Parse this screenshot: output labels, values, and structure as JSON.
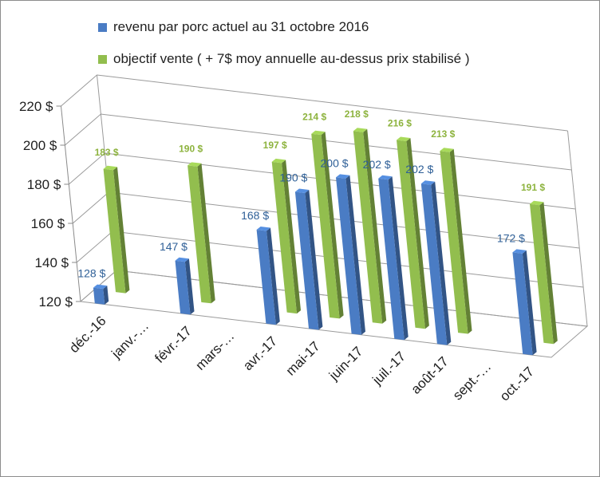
{
  "chart_data": {
    "type": "bar",
    "categories": [
      "déc.-16",
      "janv.-…",
      "févr.-17",
      "mars-…",
      "avr.-17",
      "mai-17",
      "juin-17",
      "juil.-17",
      "août-17",
      "sept.-…",
      "oct.-17"
    ],
    "series": [
      {
        "name": "revenu par porc actuel au 31 octobre 2016",
        "color": "#4a7cc4",
        "values": [
          128,
          null,
          147,
          null,
          168,
          190,
          200,
          202,
          202,
          null,
          172
        ],
        "labels": [
          "128 $",
          "",
          "147 $",
          "",
          "168 $",
          "190 $",
          "200 $",
          "202 $",
          "202 $",
          "",
          "172 $"
        ]
      },
      {
        "name": "objectif vente ( + 7$ moy annuelle au-dessus prix stabilisé )",
        "color": "#92be4e",
        "values": [
          183,
          null,
          190,
          null,
          197,
          214,
          218,
          216,
          213,
          null,
          191
        ],
        "labels": [
          "183 $",
          "",
          "190 $",
          "",
          "197 $",
          "214 $",
          "218 $",
          "216 $",
          "213 $",
          "",
          "191 $"
        ]
      }
    ],
    "ylim": [
      120,
      220
    ],
    "yticks": [
      "120 $",
      "140 $",
      "160 $",
      "180 $",
      "200 $",
      "220 $"
    ],
    "grid": true,
    "legend": "top",
    "style": "3d-clustered-column"
  }
}
